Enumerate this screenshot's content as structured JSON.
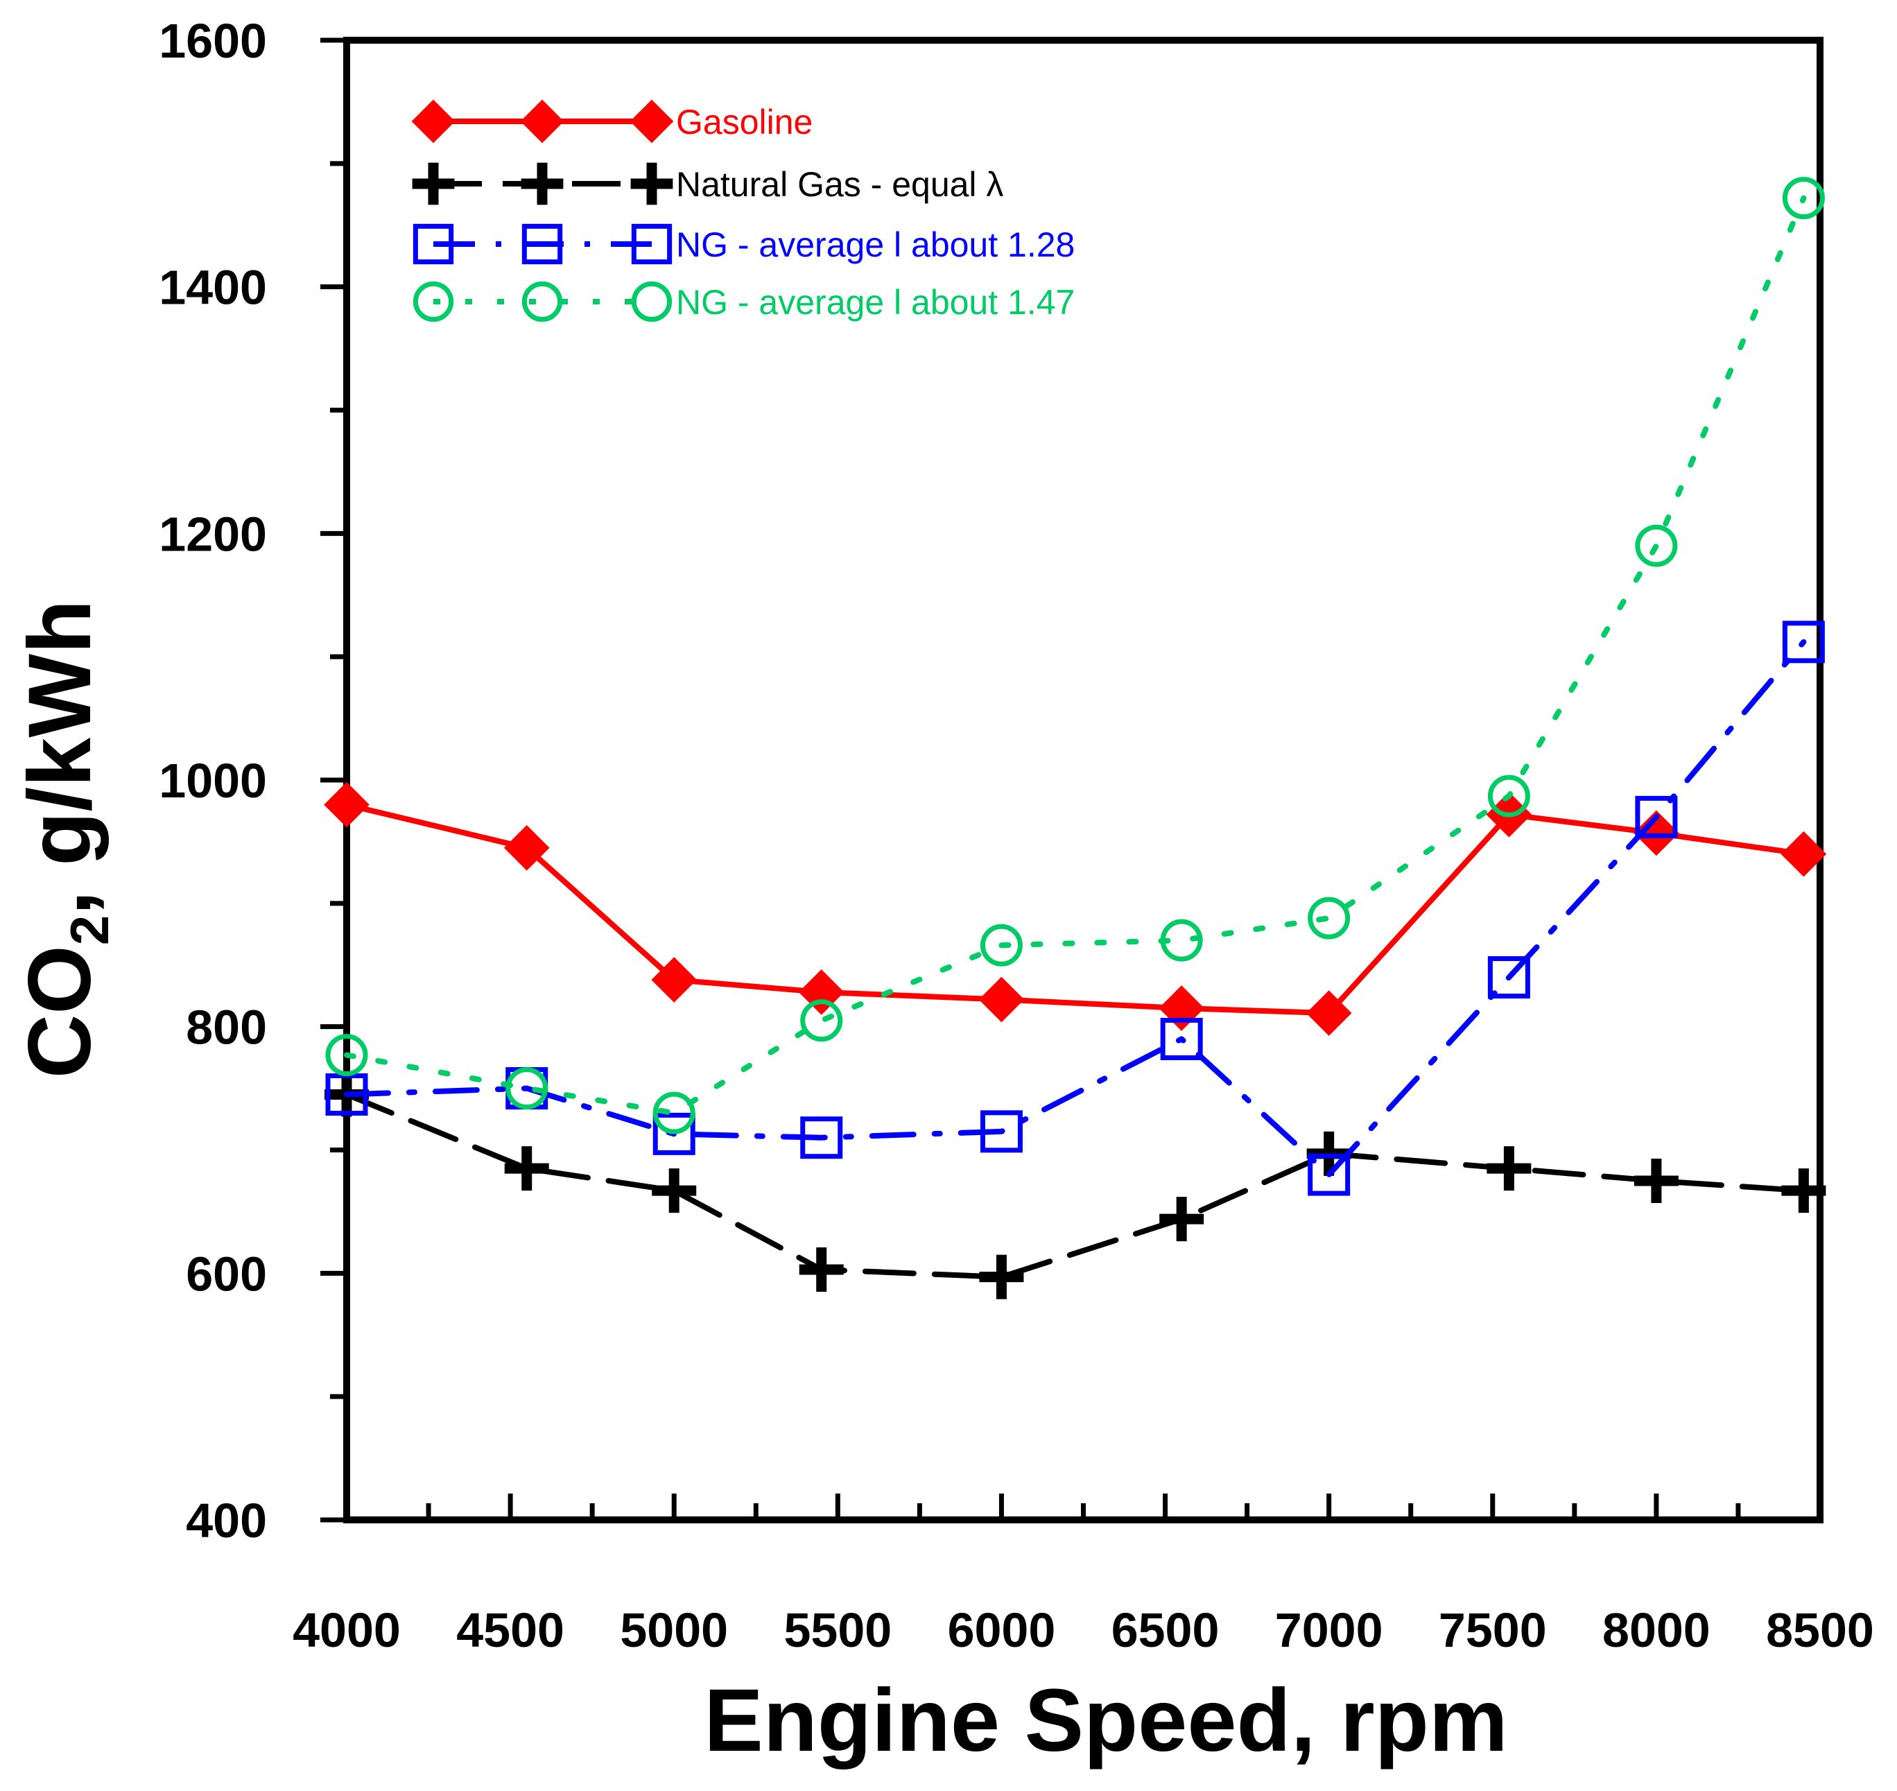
{
  "chart_data": {
    "type": "line",
    "title": "",
    "xlabel": "Engine Speed, rpm",
    "ylabel": {
      "prefix": "CO",
      "subscript": "2",
      "suffix": ", g/kWh"
    },
    "xlim": [
      4000,
      8500
    ],
    "ylim": [
      400,
      1600
    ],
    "xticks": [
      4000,
      4500,
      5000,
      5500,
      6000,
      6500,
      7000,
      7500,
      8000,
      8500
    ],
    "yticks": [
      400,
      600,
      800,
      1000,
      1200,
      1400,
      1600
    ],
    "x_minor_step": 250,
    "y_minor_step": 100,
    "legend_position": "top-left",
    "series": [
      {
        "name": "Gasoline",
        "color": "#ff0000",
        "marker": "diamond-filled",
        "line": "solid",
        "x": [
          4000,
          4550,
          5000,
          5450,
          6000,
          6550,
          7000,
          7550,
          8000,
          8450
        ],
        "y": [
          980,
          945,
          838,
          828,
          822,
          815,
          811,
          972,
          957,
          940
        ]
      },
      {
        "name": "Natural Gas - equal λ",
        "color": "#000000",
        "marker": "plus",
        "line": "dashed",
        "x": [
          4000,
          4550,
          5000,
          5450,
          6000,
          6550,
          7000,
          7550,
          8000,
          8450
        ],
        "y": [
          745,
          685,
          667,
          603,
          597,
          644,
          697,
          685,
          675,
          667
        ]
      },
      {
        "name": "NG - average l about 1.28",
        "color": "#0000ff",
        "marker": "square-open",
        "line": "dash-dot",
        "x": [
          4000,
          4550,
          5000,
          5450,
          6000,
          6550,
          7000,
          7550,
          8000,
          8450
        ],
        "y": [
          745,
          750,
          713,
          710,
          715,
          790,
          680,
          840,
          970,
          1112
        ]
      },
      {
        "name": "NG - average l about 1.47",
        "color": "#00cc66",
        "marker": "circle-open",
        "line": "dotted",
        "x": [
          4000,
          4550,
          5000,
          5450,
          6000,
          6550,
          7000,
          7550,
          8000,
          8450
        ],
        "y": [
          777,
          750,
          730,
          805,
          866,
          870,
          888,
          987,
          1190,
          1472
        ]
      }
    ]
  }
}
